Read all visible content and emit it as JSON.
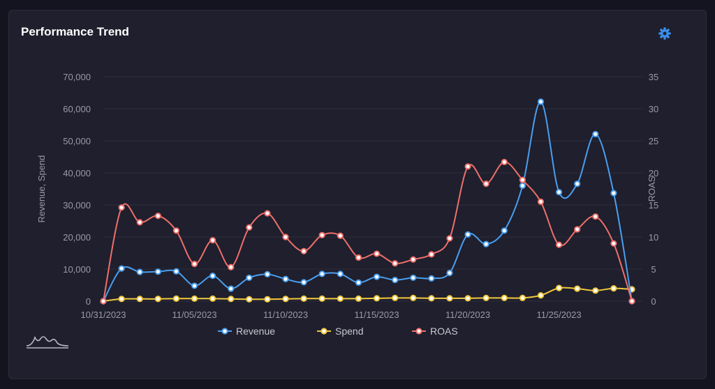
{
  "header": {
    "title": "Performance Trend",
    "settings_icon": "gear-icon"
  },
  "branding": {
    "icon": "mountain-logo-icon"
  },
  "colors": {
    "revenue": "#4a9ff0",
    "spend": "#f2c83c",
    "roas": "#ef6f6a",
    "grid": "#2d2d3c",
    "axis_text": "#9a9aa8",
    "accent": "#3b8ee8"
  },
  "chart_data": {
    "type": "line",
    "x": [
      "10/31/2023",
      "11/01/2023",
      "11/02/2023",
      "11/03/2023",
      "11/04/2023",
      "11/05/2023",
      "11/06/2023",
      "11/07/2023",
      "11/08/2023",
      "11/09/2023",
      "11/10/2023",
      "11/11/2023",
      "11/12/2023",
      "11/13/2023",
      "11/14/2023",
      "11/15/2023",
      "11/16/2023",
      "11/17/2023",
      "11/18/2023",
      "11/19/2023",
      "11/20/2023",
      "11/21/2023",
      "11/22/2023",
      "11/23/2023",
      "11/24/2023",
      "11/25/2023",
      "11/26/2023",
      "11/27/2023",
      "11/28/2023",
      "11/29/2023"
    ],
    "x_ticks": [
      "10/31/2023",
      "11/05/2023",
      "11/10/2023",
      "11/15/2023",
      "11/20/2023",
      "11/25/2023"
    ],
    "series": [
      {
        "name": "Revenue",
        "axis": "left",
        "values": [
          0,
          10200,
          9100,
          9200,
          9300,
          4800,
          7900,
          3900,
          7300,
          8400,
          6900,
          5900,
          8500,
          8500,
          5800,
          7600,
          6600,
          7300,
          7100,
          8800,
          20800,
          17800,
          22000,
          36000,
          62200,
          34000,
          36600,
          52100,
          33700,
          0
        ]
      },
      {
        "name": "Spend",
        "axis": "left",
        "values": [
          0,
          700,
          700,
          700,
          800,
          800,
          800,
          700,
          600,
          600,
          700,
          800,
          800,
          800,
          800,
          900,
          1000,
          1000,
          900,
          900,
          900,
          1000,
          1000,
          1000,
          1800,
          4100,
          3900,
          3300,
          4000,
          3700
        ]
      },
      {
        "name": "ROAS",
        "axis": "right",
        "values": [
          0,
          14.6,
          12.3,
          13.3,
          11.0,
          5.8,
          9.5,
          5.3,
          11.5,
          13.7,
          10.0,
          7.8,
          10.3,
          10.2,
          6.8,
          7.4,
          5.9,
          6.5,
          7.3,
          9.8,
          21.0,
          18.3,
          21.7,
          18.9,
          15.5,
          8.8,
          11.2,
          13.2,
          9.0,
          0
        ]
      }
    ],
    "ylabel": "Revenue, Spend",
    "ylabel_right": "ROAS",
    "ylim": [
      0,
      70000
    ],
    "yticks": [
      0,
      10000,
      20000,
      30000,
      40000,
      50000,
      60000,
      70000
    ],
    "ylim_right": [
      0,
      35
    ],
    "yticks_right": [
      0,
      5,
      10,
      15,
      20,
      25,
      30,
      35
    ],
    "legend": [
      "Revenue",
      "Spend",
      "ROAS"
    ],
    "legend_position": "bottom-center",
    "grid": true
  }
}
